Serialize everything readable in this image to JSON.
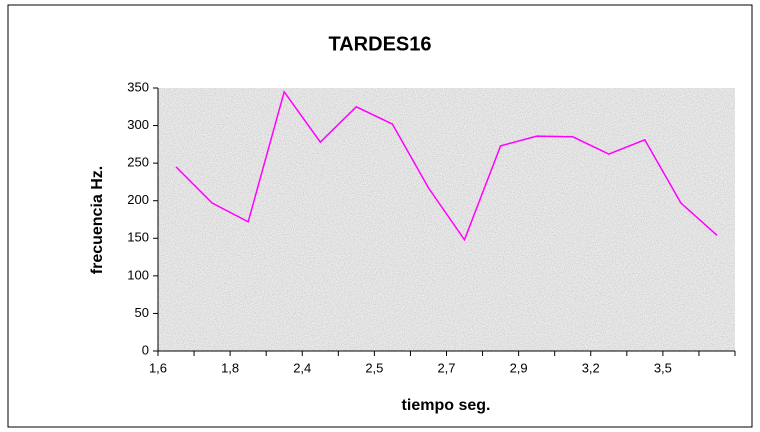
{
  "chart_data": {
    "type": "line",
    "title": "TARDES16",
    "x_label": "tiempo seg.",
    "y_label": "frecuencia Hz.",
    "categories": [
      "1,6",
      null,
      "1,8",
      null,
      "2,4",
      null,
      "2,5",
      null,
      "2,7",
      null,
      "2,9",
      null,
      "3,2",
      null,
      "3,5",
      null
    ],
    "series": [
      {
        "name": "TARDES16",
        "color": "#ff00ff",
        "values": [
          245,
          197,
          172,
          345,
          278,
          325,
          302,
          217,
          148,
          273,
          286,
          285,
          262,
          281,
          197,
          154
        ]
      }
    ],
    "ylim": [
      0,
      350
    ],
    "yticks": [
      0,
      50,
      100,
      150,
      200,
      250,
      300,
      350
    ],
    "grid": false
  }
}
